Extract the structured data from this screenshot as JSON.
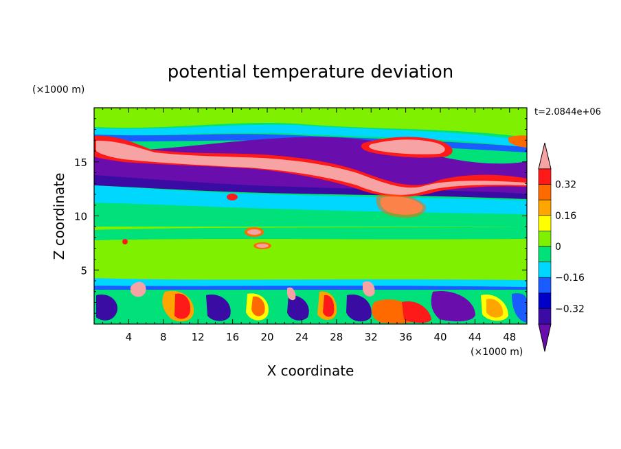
{
  "chart_data": {
    "type": "heatmap",
    "title": "potential temperature deviation",
    "xlabel": "X coordinate",
    "ylabel": "Z coordinate",
    "x_unit": "(×1000 m)",
    "y_unit": "(×1000 m)",
    "time_label": "t=2.0844e+06",
    "xlim": [
      0,
      50
    ],
    "ylim": [
      0,
      20
    ],
    "x_ticks": [
      4,
      8,
      12,
      16,
      20,
      24,
      28,
      32,
      36,
      40,
      44,
      48
    ],
    "y_ticks": [
      5,
      10,
      15
    ],
    "colorbar": {
      "levels": [
        -0.4,
        -0.32,
        -0.24,
        -0.16,
        -0.08,
        0,
        0.08,
        0.16,
        0.24,
        0.32,
        0.4
      ],
      "labels": [
        "0.32",
        "0.16",
        "0",
        "−0.16",
        "−0.32"
      ],
      "label_values": [
        0.32,
        0.16,
        0,
        -0.16,
        -0.32
      ],
      "colors": [
        "#6a0dad",
        "#3a0ca3",
        "#0000c8",
        "#1a5cff",
        "#00d7ff",
        "#00e17a",
        "#7ff000",
        "#ffff00",
        "#ffa500",
        "#ff6a00",
        "#ff1a1a",
        "#f7a3a3"
      ]
    }
  }
}
